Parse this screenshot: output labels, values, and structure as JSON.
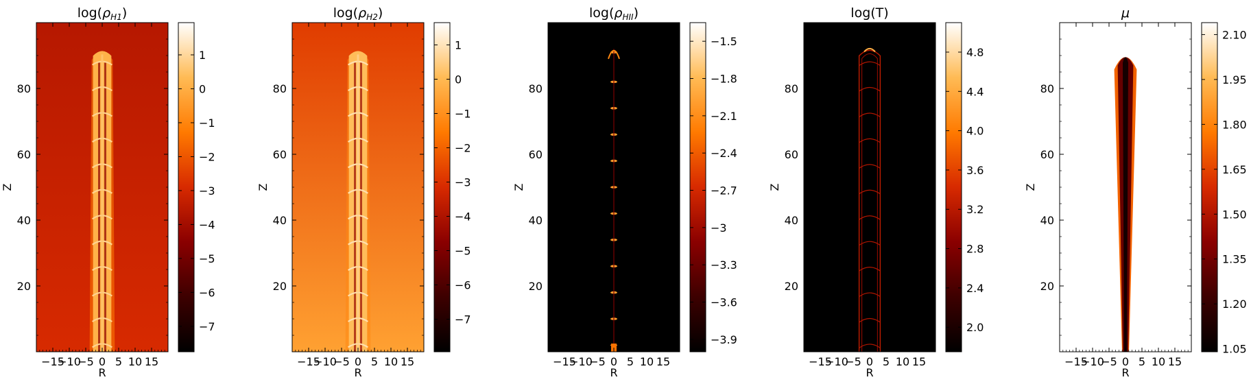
{
  "colors": {
    "colormap": [
      "#000000",
      "#3d0000",
      "#8a0000",
      "#d72a00",
      "#ff7a00",
      "#ffbb55",
      "#ffffff"
    ]
  },
  "chart_data": [
    {
      "type": "heatmap",
      "title": {
        "main": "log(",
        "sub": "ρ",
        "subscript": "H1",
        "close": ")"
      },
      "xlabel": "R",
      "ylabel": "Z",
      "xlim": [
        -20,
        20
      ],
      "ylim": [
        0,
        100
      ],
      "x_ticks": [
        -15,
        -10,
        -5,
        0,
        5,
        10,
        15
      ],
      "y_ticks": [
        20,
        40,
        60,
        80
      ],
      "colorbar": {
        "ticks": [
          1,
          0,
          -1,
          -2,
          -3,
          -4,
          -5,
          -6,
          -7
        ],
        "range": [
          -7.75,
          1.95
        ]
      },
      "background": {
        "level_top": -3.6,
        "level_bottom": -2.9
      },
      "jet": {
        "half_width": 3.2,
        "top": 92,
        "knot_spacing": 7.8
      }
    },
    {
      "type": "heatmap",
      "title": {
        "main": "log(",
        "sub": "ρ",
        "subscript": "H2",
        "close": ")"
      },
      "xlabel": "R",
      "ylabel": "Z",
      "xlim": [
        -20,
        20
      ],
      "ylim": [
        0,
        100
      ],
      "x_ticks": [
        -15,
        -10,
        -5,
        0,
        5,
        10,
        15
      ],
      "y_ticks": [
        20,
        40,
        60,
        80
      ],
      "colorbar": {
        "ticks": [
          1,
          0,
          -1,
          -2,
          -3,
          -4,
          -5,
          -6,
          -7
        ],
        "range": [
          -7.95,
          1.65
        ]
      },
      "background": {
        "level_top": -2.8,
        "level_bottom": -0.6
      },
      "jet": {
        "half_width": 3.2,
        "top": 92,
        "knot_spacing": 7.8
      }
    },
    {
      "type": "heatmap",
      "title": {
        "main": "log(",
        "sub": "ρ",
        "subscript": "HII",
        "close": ")"
      },
      "xlabel": "R",
      "ylabel": "Z",
      "xlim": [
        -20,
        20
      ],
      "ylim": [
        0,
        100
      ],
      "x_ticks": [
        -15,
        -10,
        -5,
        0,
        5,
        10,
        15
      ],
      "y_ticks": [
        20,
        40,
        60,
        80
      ],
      "colorbar": {
        "ticks": [
          -1.5,
          -1.8,
          -2.1,
          -2.4,
          -2.7,
          -3.0,
          -3.3,
          -3.6,
          -3.9
        ],
        "range": [
          -4.0,
          -1.35
        ]
      },
      "jet": {
        "knots": [
          2,
          10,
          18,
          26,
          34,
          42,
          50,
          58,
          66,
          74,
          82,
          91
        ]
      }
    },
    {
      "type": "heatmap",
      "title": {
        "main": "log(T)"
      },
      "xlabel": "R",
      "ylabel": "Z",
      "xlim": [
        -20,
        20
      ],
      "ylim": [
        0,
        100
      ],
      "x_ticks": [
        -15,
        -10,
        -5,
        0,
        5,
        10,
        15
      ],
      "y_ticks": [
        20,
        40,
        60,
        80
      ],
      "colorbar": {
        "ticks": [
          4.8,
          4.4,
          4.0,
          3.6,
          3.2,
          2.8,
          2.4,
          2.0
        ],
        "range": [
          1.75,
          5.1
        ]
      },
      "jet": {
        "half_width": 3.2,
        "top": 92,
        "knot_spacing": 7.8
      }
    },
    {
      "type": "heatmap",
      "title": {
        "main": "μ"
      },
      "xlabel": "R",
      "ylabel": "Z",
      "xlim": [
        -20,
        20
      ],
      "ylim": [
        0,
        100
      ],
      "x_ticks": [
        -15,
        -10,
        -5,
        0,
        5,
        10,
        15
      ],
      "y_ticks": [
        20,
        40,
        60,
        80
      ],
      "colorbar": {
        "ticks": [
          "2.10",
          "1.95",
          "1.80",
          "1.65",
          "1.50",
          "1.35",
          "1.20",
          "1.05"
        ],
        "range": [
          1.04,
          2.14
        ]
      },
      "jet": {
        "half_width": 3.0,
        "top": 92
      }
    }
  ]
}
